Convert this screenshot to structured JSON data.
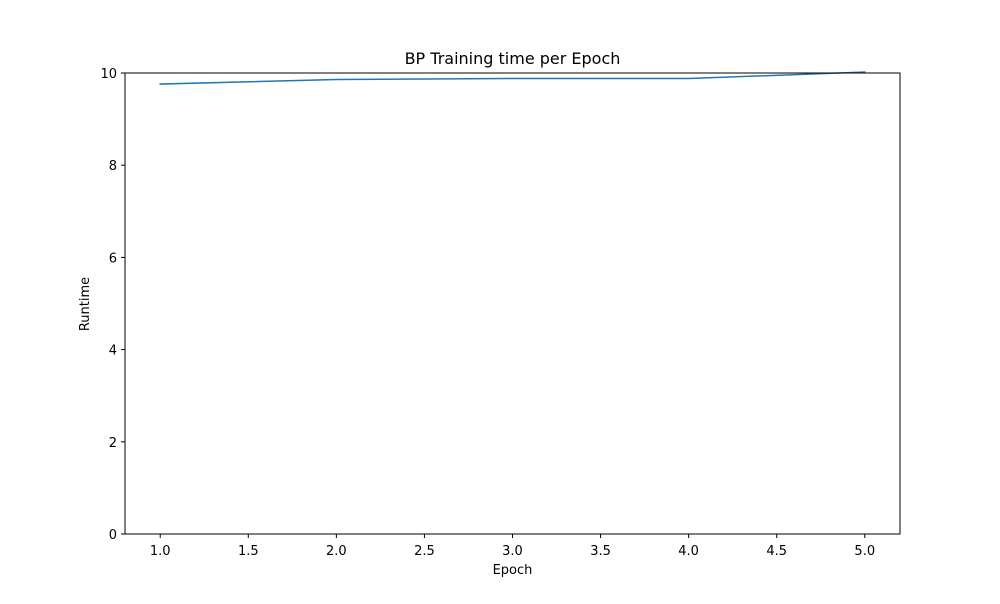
{
  "chart_data": {
    "type": "line",
    "title": "BP Training time per Epoch",
    "xlabel": "Epoch",
    "ylabel": "Runtime",
    "xlim": [
      0.8,
      5.2
    ],
    "ylim": [
      0,
      10
    ],
    "x_ticks": [
      "1.0",
      "1.5",
      "2.0",
      "2.5",
      "3.0",
      "3.5",
      "4.0",
      "4.5",
      "5.0"
    ],
    "y_ticks": [
      "0",
      "2",
      "4",
      "6",
      "8",
      "10"
    ],
    "grid": false,
    "series": [
      {
        "x": [
          1,
          2,
          3,
          4,
          5
        ],
        "values": [
          9.76,
          9.86,
          9.88,
          9.88,
          10.02
        ],
        "color": "#1f77b4"
      }
    ]
  }
}
